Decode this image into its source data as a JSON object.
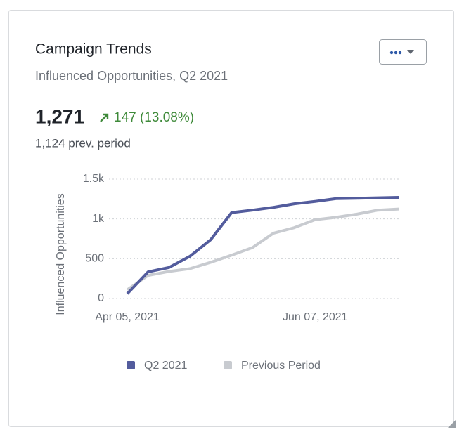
{
  "card": {
    "title": "Campaign Trends",
    "subtitle": "Influenced Opportunities, Q2 2021",
    "metric": "1,271",
    "change": "147 (13.08%)",
    "previous": "1,124 prev. period"
  },
  "chart_data": {
    "type": "line",
    "y_label": "Influenced Opportunities",
    "categories": [
      "Apr 05, 2021",
      null,
      null,
      null,
      null,
      null,
      null,
      null,
      null,
      "Jun 07, 2021",
      null,
      null,
      null,
      null
    ],
    "series": [
      {
        "name": "Q2 2021",
        "color": "#535c9d",
        "values": [
          60,
          335,
          390,
          530,
          740,
          1080,
          1110,
          1145,
          1190,
          1220,
          1255,
          1260,
          1265,
          1271
        ]
      },
      {
        "name": "Previous Period",
        "color": "#c8cbd0",
        "values": [
          110,
          290,
          340,
          375,
          455,
          545,
          640,
          820,
          890,
          990,
          1020,
          1060,
          1110,
          1124
        ]
      }
    ],
    "ylim": [
      0,
      1500
    ],
    "yticks": [
      0,
      500,
      {
        "value": 1000,
        "label": "1k"
      },
      {
        "value": 1500,
        "label": "1.5k"
      }
    ],
    "grid": true
  }
}
